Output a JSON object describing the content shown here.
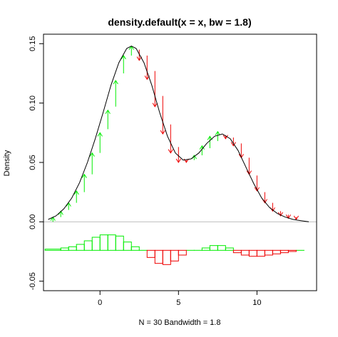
{
  "chart_data": {
    "type": "line",
    "title": "density.default(x = x, bw = 1.8)",
    "xlabel": "N = 30   Bandwidth = 1.8",
    "ylabel": "Density",
    "xlim": [
      -3.6,
      13.8
    ],
    "ylim": [
      -0.058,
      0.158
    ],
    "x_ticks": [
      0,
      5,
      10
    ],
    "x_tick_labels": [
      "0",
      "5",
      "10"
    ],
    "y_ticks": [
      -0.05,
      0.0,
      0.05,
      0.1,
      0.15
    ],
    "y_tick_labels": [
      "-0.05",
      "0.00",
      "0.05",
      "0.10",
      "0.15"
    ],
    "colors": {
      "curve": "#000000",
      "positive": "#00ee00",
      "negative": "#ee0000",
      "zero_line": "#bebebe"
    },
    "density_curve": {
      "x": [
        -3.3,
        -2.8,
        -2.3,
        -1.8,
        -1.3,
        -0.8,
        -0.3,
        0.2,
        0.7,
        1.2,
        1.7,
        2.0,
        2.3,
        2.8,
        3.3,
        3.8,
        4.3,
        4.8,
        5.3,
        5.8,
        6.3,
        6.8,
        7.3,
        7.8,
        8.3,
        8.8,
        9.3,
        9.8,
        10.3,
        10.8,
        11.3,
        11.8,
        12.3,
        12.8,
        13.3
      ],
      "y": [
        0.002,
        0.005,
        0.011,
        0.02,
        0.033,
        0.05,
        0.07,
        0.092,
        0.115,
        0.134,
        0.146,
        0.148,
        0.146,
        0.134,
        0.115,
        0.092,
        0.072,
        0.058,
        0.052,
        0.053,
        0.058,
        0.066,
        0.072,
        0.074,
        0.07,
        0.06,
        0.046,
        0.032,
        0.02,
        0.012,
        0.007,
        0.004,
        0.002,
        0.001,
        0.0
      ]
    },
    "arrows": {
      "x": [
        -3.0,
        -2.5,
        -2.0,
        -1.5,
        -1.0,
        -0.5,
        0.0,
        0.5,
        1.0,
        1.5,
        2.0,
        2.5,
        3.0,
        3.5,
        4.0,
        4.5,
        5.0,
        5.5,
        6.0,
        6.5,
        7.0,
        7.5,
        8.0,
        8.5,
        9.0,
        9.5,
        10.0,
        10.5,
        11.0,
        11.5,
        12.0,
        12.5
      ],
      "y0": [
        0.0,
        0.004,
        0.01,
        0.016,
        0.025,
        0.04,
        0.058,
        0.078,
        0.097,
        0.125,
        0.14,
        0.145,
        0.14,
        0.127,
        0.106,
        0.082,
        0.063,
        0.052,
        0.052,
        0.056,
        0.062,
        0.068,
        0.073,
        0.071,
        0.066,
        0.054,
        0.039,
        0.025,
        0.016,
        0.009,
        0.006,
        0.004
      ],
      "y1": [
        0.004,
        0.009,
        0.016,
        0.026,
        0.04,
        0.058,
        0.075,
        0.094,
        0.119,
        0.14,
        0.148,
        0.136,
        0.12,
        0.097,
        0.074,
        0.058,
        0.05,
        0.05,
        0.056,
        0.064,
        0.072,
        0.076,
        0.07,
        0.064,
        0.054,
        0.04,
        0.026,
        0.016,
        0.009,
        0.005,
        0.003,
        0.002
      ]
    },
    "residual_steps": {
      "x": [
        -3.5,
        -2.5,
        -2.0,
        -1.5,
        -1.0,
        -0.5,
        0.0,
        0.5,
        1.0,
        1.5,
        2.0,
        2.5,
        3.0,
        3.5,
        4.0,
        4.5,
        5.0,
        5.5,
        6.0,
        6.5,
        7.0,
        7.5,
        8.0,
        8.5,
        9.0,
        9.5,
        10.0,
        10.5,
        11.0,
        11.5,
        12.0,
        12.5,
        13.0
      ],
      "value": [
        -0.023,
        -0.022,
        -0.021,
        -0.019,
        -0.016,
        -0.013,
        -0.011,
        -0.011,
        -0.012,
        -0.017,
        -0.021,
        -0.024,
        -0.03,
        -0.035,
        -0.036,
        -0.033,
        -0.028,
        -0.024,
        -0.024,
        -0.022,
        -0.02,
        -0.02,
        -0.022,
        -0.026,
        -0.028,
        -0.029,
        -0.029,
        -0.028,
        -0.027,
        -0.026,
        -0.025,
        -0.024,
        -0.024
      ],
      "baseline": -0.024
    }
  }
}
